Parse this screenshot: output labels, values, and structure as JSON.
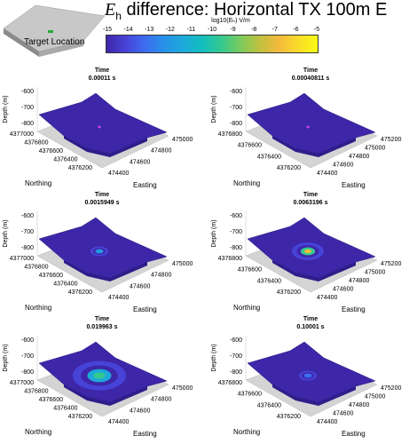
{
  "title": {
    "symbol": "E",
    "subscript": "h",
    "text": " difference: Horizontal TX 100m E"
  },
  "inset": {
    "label": "Target Location",
    "colors": {
      "terrain": "#c8c8c8",
      "marker": "#1faa3a"
    }
  },
  "colorbar": {
    "label": "log10(Eₕ) V/m",
    "ticks": [
      "-15",
      "-14",
      "-13",
      "-12",
      "-11",
      "-10",
      "-9",
      "-8",
      "-7",
      "-6",
      "-5"
    ],
    "range": [
      -15,
      -5
    ],
    "colormap": "parula"
  },
  "chart_data": [
    {
      "type": "surface",
      "time_label": "Time",
      "time": "0.00011 s",
      "anomaly_peak_log10": -14.5,
      "anomaly_extent": "tiny",
      "zlabel": "Depth (m)",
      "ylabel": "Northing",
      "xlabel": "Easting",
      "zticks": [
        "-600",
        "-700",
        "-800"
      ],
      "yticks": [
        "4377000",
        "4376800",
        "4376600",
        "4376400",
        "4376200"
      ],
      "xticks": [
        "474400",
        "474600",
        "474800",
        "475000"
      ]
    },
    {
      "type": "surface",
      "time_label": "Time",
      "time": "0.00040811 s",
      "anomaly_peak_log10": -14.5,
      "anomaly_extent": "tiny",
      "zlabel": "Depth (m)",
      "ylabel": "Northing",
      "xlabel": "Easting",
      "zticks": [
        "-600",
        "-700",
        "-800"
      ],
      "yticks": [
        "4376800",
        "4376600",
        "4376400",
        "4376200"
      ],
      "xticks": [
        "474400",
        "474600",
        "474800",
        "475000",
        "475200"
      ]
    },
    {
      "type": "surface",
      "time_label": "Time",
      "time": "0.0015949 s",
      "anomaly_peak_log10": -11,
      "anomaly_extent": "small",
      "zlabel": "Depth (m)",
      "ylabel": "Northing",
      "xlabel": "Easting",
      "zticks": [
        "-600",
        "-700",
        "-800"
      ],
      "yticks": [
        "4377000",
        "4376800",
        "4376600",
        "4376400",
        "4376200"
      ],
      "xticks": [
        "474400",
        "474600",
        "474800",
        "475000"
      ]
    },
    {
      "type": "surface",
      "time_label": "Time",
      "time": "0.0063196 s",
      "anomaly_peak_log10": -7,
      "anomaly_extent": "medium",
      "zlabel": "Depth (m)",
      "ylabel": "Northing",
      "xlabel": "Easting",
      "zticks": [
        "-600",
        "-700",
        "-800"
      ],
      "yticks": [
        "4376800",
        "4376600",
        "4376400",
        "4376200"
      ],
      "xticks": [
        "474400",
        "474600",
        "474800",
        "475000",
        "475200"
      ]
    },
    {
      "type": "surface",
      "time_label": "Time",
      "time": "0.019963 s",
      "anomaly_peak_log10": -9.5,
      "anomaly_extent": "large",
      "zlabel": "Depth (m)",
      "ylabel": "Northing",
      "xlabel": "Easting",
      "zticks": [
        "-600",
        "-700",
        "-800"
      ],
      "yticks": [
        "4377000",
        "4376800",
        "4376600",
        "4376400",
        "4376200"
      ],
      "xticks": [
        "474400",
        "474600",
        "474800",
        "475000"
      ]
    },
    {
      "type": "surface",
      "time_label": "Time",
      "time": "0.10001 s",
      "anomaly_peak_log10": -13,
      "anomaly_extent": "small",
      "zlabel": "Depth (m)",
      "ylabel": "Northing",
      "xlabel": "Easting",
      "zticks": [
        "-600",
        "-700",
        "-800"
      ],
      "yticks": [
        "4376800",
        "4376600",
        "4376400",
        "4376200"
      ],
      "xticks": [
        "474400",
        "474600",
        "474800",
        "475000",
        "475200"
      ]
    }
  ],
  "colors": {
    "surface": "#3e26a8",
    "surface_edge": "#2a1c80",
    "floor": "#d4d4d4"
  }
}
